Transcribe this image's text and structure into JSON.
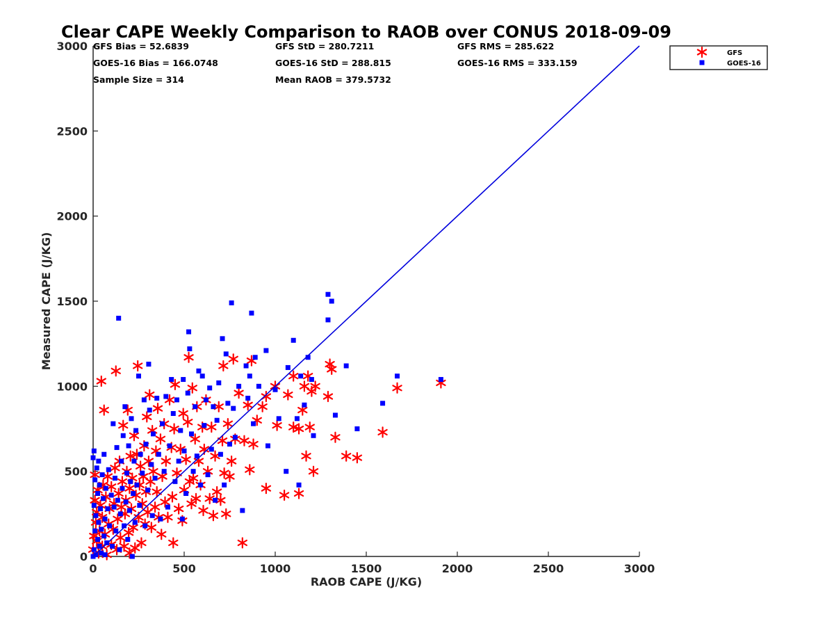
{
  "chart_data": {
    "type": "scatter",
    "title": "Clear CAPE Weekly Comparison to RAOB over CONUS 2018-09-09",
    "xlabel": "RAOB CAPE (J/KG)",
    "ylabel": "Measured CAPE (J/KG)",
    "xlim": [
      0,
      3000
    ],
    "ylim": [
      0,
      3000
    ],
    "xticks": [
      "0",
      "500",
      "1000",
      "1500",
      "2000",
      "2500",
      "3000"
    ],
    "yticks": [
      "0",
      "500",
      "1000",
      "1500",
      "2000",
      "2500",
      "3000"
    ],
    "grid": false,
    "legend_position": "top-right",
    "reference_line": {
      "from": [
        0,
        0
      ],
      "to": [
        3000,
        3000
      ],
      "color": "#0000dd"
    },
    "stats": [
      "GFS Bias = 52.6839",
      "GFS StD = 280.7211",
      "GFS RMS = 285.622",
      "GOES-16 Bias = 166.0748",
      "GOES-16 StD = 288.815",
      "GOES-16 RMS = 333.159",
      "Sample Size = 314",
      "Mean RAOB = 379.5732"
    ],
    "series": [
      {
        "name": "GFS",
        "marker": "asterisk",
        "color": "#ff0000",
        "points": [
          [
            0,
            40
          ],
          [
            5,
            120
          ],
          [
            10,
            330
          ],
          [
            10,
            480
          ],
          [
            15,
            200
          ],
          [
            20,
            90
          ],
          [
            20,
            260
          ],
          [
            25,
            390
          ],
          [
            30,
            20
          ],
          [
            35,
            150
          ],
          [
            40,
            300
          ],
          [
            45,
            1030
          ],
          [
            50,
            60
          ],
          [
            50,
            230
          ],
          [
            55,
            420
          ],
          [
            60,
            860
          ],
          [
            65,
            130
          ],
          [
            70,
            350
          ],
          [
            75,
            10
          ],
          [
            80,
            470
          ],
          [
            85,
            190
          ],
          [
            90,
            280
          ],
          [
            100,
            70
          ],
          [
            100,
            410
          ],
          [
            110,
            160
          ],
          [
            115,
            310
          ],
          [
            120,
            520
          ],
          [
            125,
            1090
          ],
          [
            130,
            40
          ],
          [
            135,
            220
          ],
          [
            140,
            370
          ],
          [
            145,
            560
          ],
          [
            150,
            110
          ],
          [
            155,
            290
          ],
          [
            160,
            440
          ],
          [
            165,
            770
          ],
          [
            170,
            60
          ],
          [
            175,
            250
          ],
          [
            180,
            330
          ],
          [
            185,
            500
          ],
          [
            190,
            860
          ],
          [
            195,
            140
          ],
          [
            200,
            20
          ],
          [
            200,
            400
          ],
          [
            205,
            590
          ],
          [
            210,
            280
          ],
          [
            215,
            460
          ],
          [
            220,
            170
          ],
          [
            225,
            710
          ],
          [
            230,
            50
          ],
          [
            235,
            360
          ],
          [
            240,
            600
          ],
          [
            245,
            1120
          ],
          [
            250,
            230
          ],
          [
            255,
            420
          ],
          [
            260,
            530
          ],
          [
            265,
            80
          ],
          [
            270,
            310
          ],
          [
            275,
            470
          ],
          [
            280,
            650
          ],
          [
            285,
            190
          ],
          [
            290,
            380
          ],
          [
            295,
            820
          ],
          [
            300,
            260
          ],
          [
            305,
            560
          ],
          [
            310,
            950
          ],
          [
            315,
            440
          ],
          [
            320,
            170
          ],
          [
            325,
            740
          ],
          [
            330,
            500
          ],
          [
            340,
            290
          ],
          [
            345,
            620
          ],
          [
            350,
            380
          ],
          [
            355,
            870
          ],
          [
            360,
            230
          ],
          [
            370,
            690
          ],
          [
            375,
            130
          ],
          [
            380,
            470
          ],
          [
            390,
            780
          ],
          [
            395,
            320
          ],
          [
            400,
            560
          ],
          [
            410,
            230
          ],
          [
            420,
            920
          ],
          [
            430,
            640
          ],
          [
            435,
            350
          ],
          [
            440,
            80
          ],
          [
            445,
            750
          ],
          [
            450,
            1010
          ],
          [
            460,
            490
          ],
          [
            470,
            280
          ],
          [
            480,
            630
          ],
          [
            490,
            210
          ],
          [
            495,
            840
          ],
          [
            500,
            390
          ],
          [
            510,
            570
          ],
          [
            520,
            790
          ],
          [
            525,
            1170
          ],
          [
            530,
            440
          ],
          [
            540,
            310
          ],
          [
            545,
            990
          ],
          [
            550,
            460
          ],
          [
            560,
            690
          ],
          [
            565,
            340
          ],
          [
            570,
            880
          ],
          [
            580,
            560
          ],
          [
            590,
            420
          ],
          [
            600,
            760
          ],
          [
            605,
            270
          ],
          [
            610,
            630
          ],
          [
            620,
            920
          ],
          [
            630,
            500
          ],
          [
            640,
            340
          ],
          [
            650,
            760
          ],
          [
            660,
            240
          ],
          [
            670,
            590
          ],
          [
            680,
            380
          ],
          [
            690,
            880
          ],
          [
            700,
            330
          ],
          [
            710,
            680
          ],
          [
            715,
            1120
          ],
          [
            720,
            490
          ],
          [
            730,
            250
          ],
          [
            740,
            780
          ],
          [
            750,
            470
          ],
          [
            760,
            560
          ],
          [
            770,
            1160
          ],
          [
            780,
            690
          ],
          [
            800,
            960
          ],
          [
            820,
            80
          ],
          [
            830,
            680
          ],
          [
            850,
            890
          ],
          [
            860,
            510
          ],
          [
            870,
            1150
          ],
          [
            880,
            660
          ],
          [
            900,
            800
          ],
          [
            930,
            880
          ],
          [
            950,
            940
          ],
          [
            950,
            400
          ],
          [
            1000,
            1000
          ],
          [
            1010,
            770
          ],
          [
            1050,
            360
          ],
          [
            1070,
            950
          ],
          [
            1100,
            760
          ],
          [
            1100,
            1060
          ],
          [
            1130,
            750
          ],
          [
            1130,
            370
          ],
          [
            1150,
            860
          ],
          [
            1160,
            1000
          ],
          [
            1170,
            590
          ],
          [
            1180,
            1060
          ],
          [
            1190,
            760
          ],
          [
            1200,
            970
          ],
          [
            1210,
            500
          ],
          [
            1220,
            1000
          ],
          [
            1290,
            940
          ],
          [
            1300,
            1130
          ],
          [
            1310,
            1100
          ],
          [
            1330,
            700
          ],
          [
            1390,
            590
          ],
          [
            1450,
            580
          ],
          [
            1590,
            730
          ],
          [
            1670,
            990
          ],
          [
            1910,
            1020
          ]
        ]
      },
      {
        "name": "GOES-16",
        "marker": "square",
        "color": "#0000ff",
        "points": [
          [
            0,
            0
          ],
          [
            0,
            580
          ],
          [
            5,
            40
          ],
          [
            5,
            300
          ],
          [
            5,
            620
          ],
          [
            10,
            150
          ],
          [
            10,
            450
          ],
          [
            15,
            10
          ],
          [
            15,
            240
          ],
          [
            20,
            520
          ],
          [
            25,
            100
          ],
          [
            25,
            370
          ],
          [
            30,
            200
          ],
          [
            30,
            560
          ],
          [
            35,
            60
          ],
          [
            35,
            420
          ],
          [
            40,
            280
          ],
          [
            45,
            20
          ],
          [
            45,
            160
          ],
          [
            50,
            480
          ],
          [
            55,
            340
          ],
          [
            60,
            120
          ],
          [
            60,
            600
          ],
          [
            65,
            10
          ],
          [
            65,
            220
          ],
          [
            70,
            400
          ],
          [
            75,
            80
          ],
          [
            80,
            280
          ],
          [
            85,
            510
          ],
          [
            90,
            180
          ],
          [
            100,
            360
          ],
          [
            105,
            60
          ],
          [
            110,
            780
          ],
          [
            115,
            290
          ],
          [
            120,
            460
          ],
          [
            125,
            150
          ],
          [
            130,
            640
          ],
          [
            135,
            330
          ],
          [
            140,
            1400
          ],
          [
            145,
            40
          ],
          [
            150,
            250
          ],
          [
            155,
            560
          ],
          [
            160,
            400
          ],
          [
            165,
            710
          ],
          [
            170,
            180
          ],
          [
            175,
            880
          ],
          [
            180,
            320
          ],
          [
            185,
            490
          ],
          [
            190,
            100
          ],
          [
            195,
            650
          ],
          [
            200,
            270
          ],
          [
            205,
            440
          ],
          [
            210,
            810
          ],
          [
            215,
            0
          ],
          [
            220,
            370
          ],
          [
            225,
            560
          ],
          [
            230,
            200
          ],
          [
            235,
            740
          ],
          [
            240,
            420
          ],
          [
            250,
            1060
          ],
          [
            255,
            300
          ],
          [
            260,
            600
          ],
          [
            270,
            490
          ],
          [
            280,
            920
          ],
          [
            285,
            180
          ],
          [
            290,
            660
          ],
          [
            300,
            390
          ],
          [
            305,
            1130
          ],
          [
            310,
            860
          ],
          [
            320,
            540
          ],
          [
            325,
            240
          ],
          [
            330,
            720
          ],
          [
            340,
            460
          ],
          [
            350,
            930
          ],
          [
            360,
            600
          ],
          [
            370,
            220
          ],
          [
            380,
            780
          ],
          [
            390,
            500
          ],
          [
            400,
            940
          ],
          [
            410,
            290
          ],
          [
            420,
            650
          ],
          [
            430,
            1040
          ],
          [
            440,
            840
          ],
          [
            450,
            440
          ],
          [
            460,
            920
          ],
          [
            470,
            560
          ],
          [
            480,
            740
          ],
          [
            490,
            220
          ],
          [
            495,
            1040
          ],
          [
            500,
            620
          ],
          [
            510,
            370
          ],
          [
            520,
            960
          ],
          [
            525,
            1320
          ],
          [
            530,
            1220
          ],
          [
            540,
            720
          ],
          [
            550,
            500
          ],
          [
            560,
            880
          ],
          [
            570,
            590
          ],
          [
            580,
            1090
          ],
          [
            590,
            420
          ],
          [
            600,
            1060
          ],
          [
            610,
            770
          ],
          [
            620,
            920
          ],
          [
            630,
            480
          ],
          [
            640,
            990
          ],
          [
            650,
            630
          ],
          [
            660,
            880
          ],
          [
            670,
            330
          ],
          [
            680,
            800
          ],
          [
            690,
            1020
          ],
          [
            700,
            600
          ],
          [
            710,
            1280
          ],
          [
            720,
            420
          ],
          [
            730,
            1190
          ],
          [
            740,
            900
          ],
          [
            750,
            660
          ],
          [
            760,
            1490
          ],
          [
            770,
            870
          ],
          [
            780,
            700
          ],
          [
            800,
            1000
          ],
          [
            820,
            270
          ],
          [
            840,
            1120
          ],
          [
            850,
            930
          ],
          [
            860,
            1060
          ],
          [
            870,
            1430
          ],
          [
            880,
            780
          ],
          [
            890,
            1170
          ],
          [
            910,
            1000
          ],
          [
            950,
            1210
          ],
          [
            960,
            650
          ],
          [
            1000,
            980
          ],
          [
            1020,
            810
          ],
          [
            1060,
            500
          ],
          [
            1070,
            1110
          ],
          [
            1100,
            1270
          ],
          [
            1120,
            810
          ],
          [
            1130,
            420
          ],
          [
            1140,
            1060
          ],
          [
            1160,
            890
          ],
          [
            1180,
            1170
          ],
          [
            1200,
            1040
          ],
          [
            1210,
            710
          ],
          [
            1290,
            1390
          ],
          [
            1290,
            1540
          ],
          [
            1310,
            1500
          ],
          [
            1330,
            830
          ],
          [
            1390,
            1120
          ],
          [
            1450,
            750
          ],
          [
            1590,
            900
          ],
          [
            1670,
            1060
          ],
          [
            1910,
            1040
          ]
        ]
      }
    ]
  }
}
